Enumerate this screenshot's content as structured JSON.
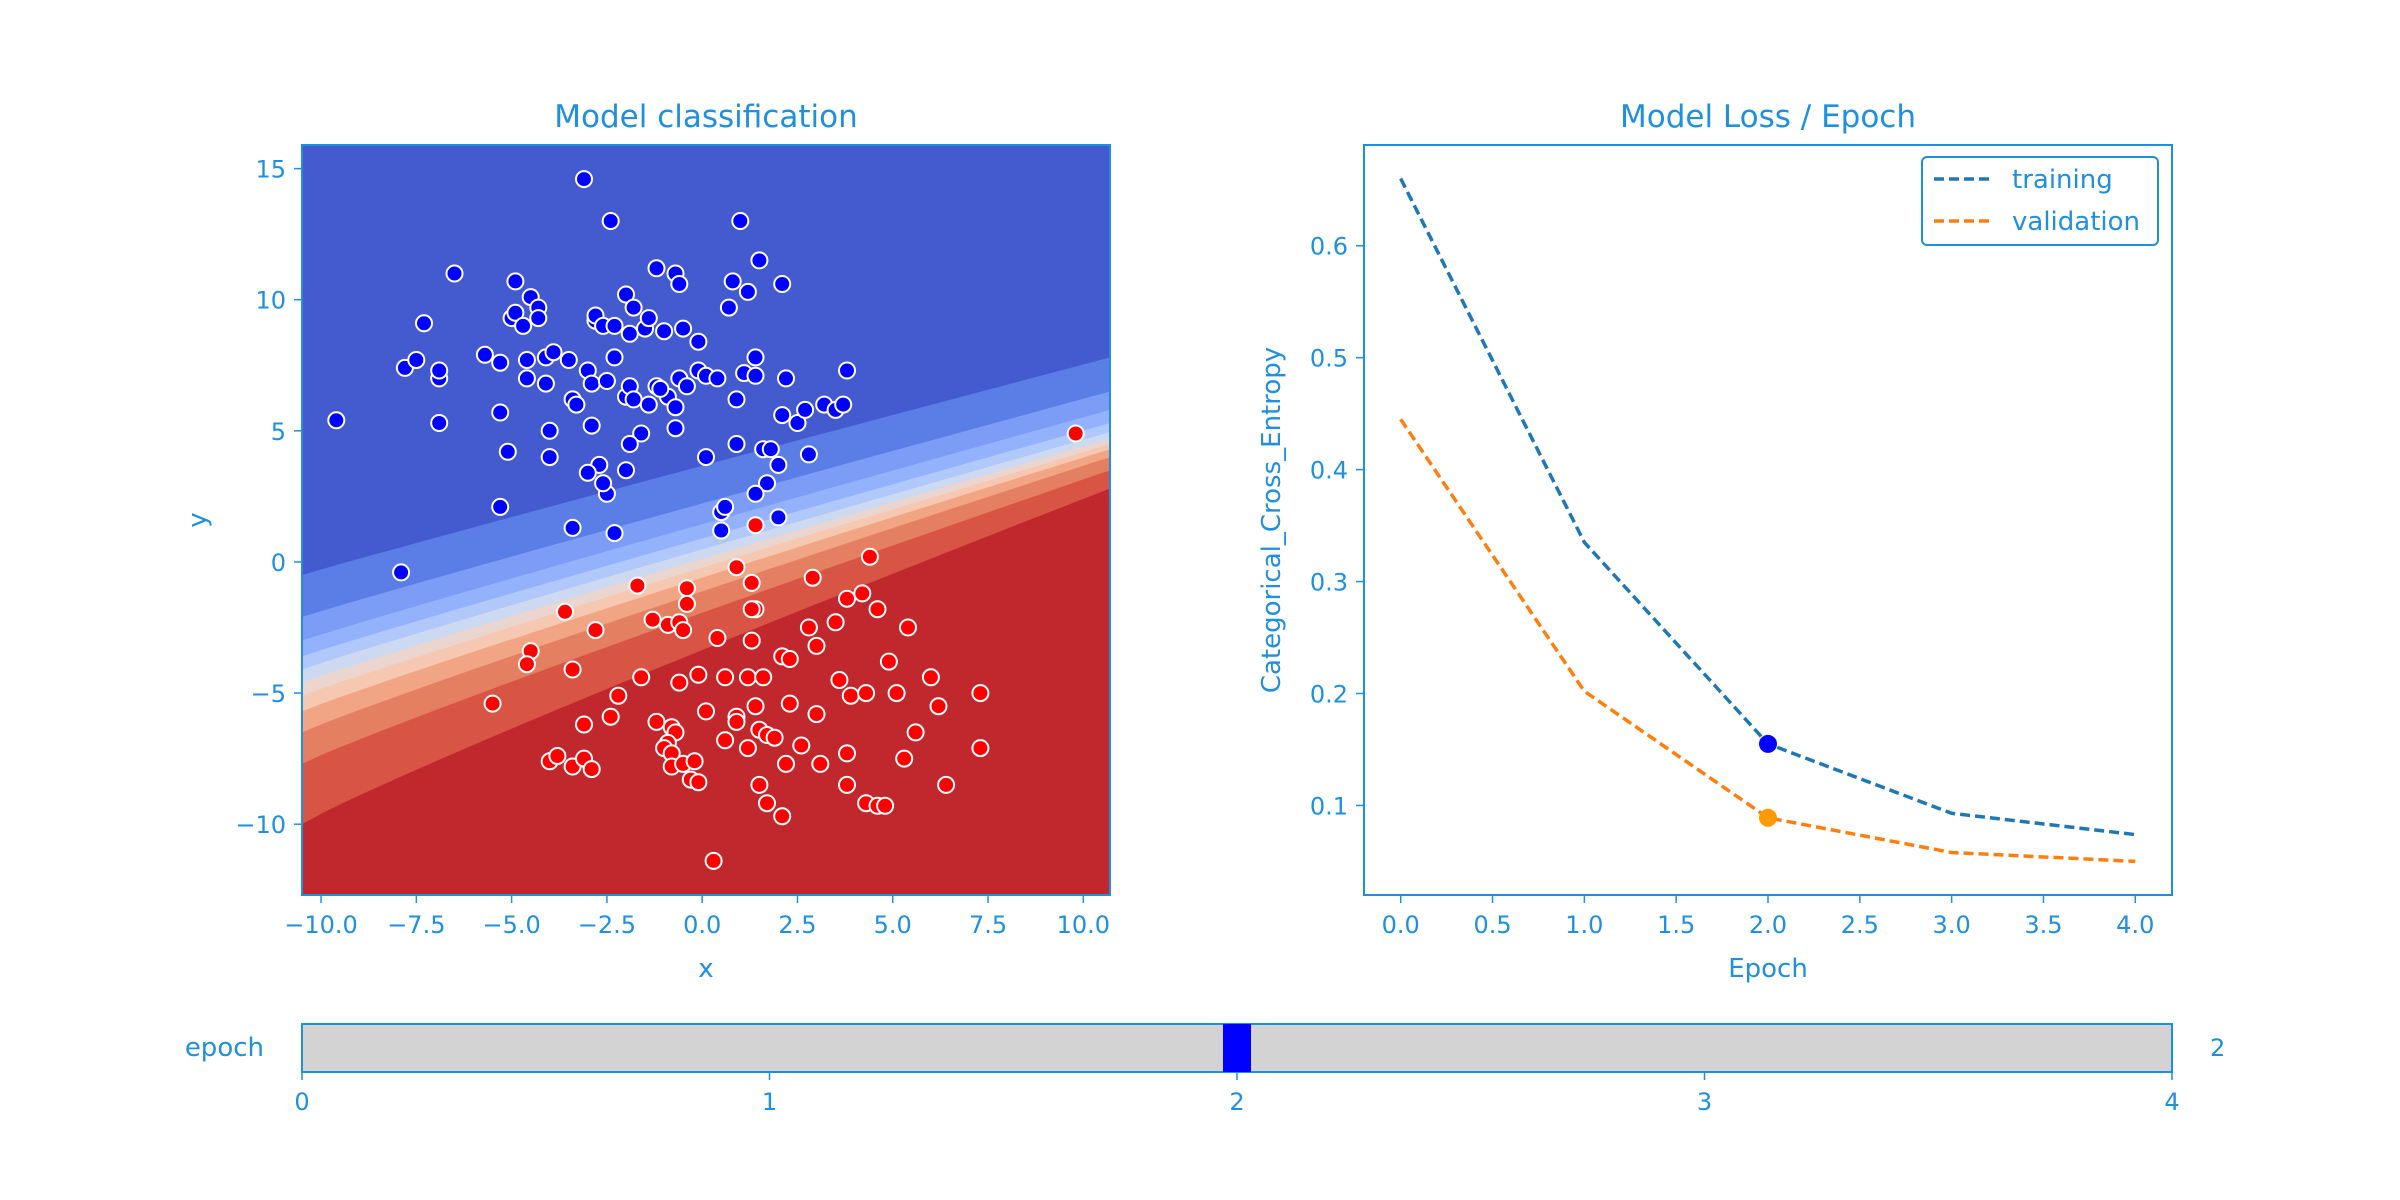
{
  "theme": {
    "text_color": "#1f8fe0",
    "frame_color": "#1f8fe0",
    "class_colors": {
      "blue": "#0000ff",
      "red": "#ff0000"
    },
    "contour_colors": [
      "#c0282d",
      "#d85545",
      "#e47f62",
      "#f2a585",
      "#f7c8b1",
      "#ead6cf",
      "#ccd9f0",
      "#b1c8fb",
      "#94b2fb",
      "#7d9cf6",
      "#5b7ee6",
      "#445bd0"
    ],
    "training_color": "#1f77b4",
    "validation_color": "#ff7f0e",
    "slider_track": "#d3d3d3",
    "slider_handle": "#0000ff"
  },
  "chart_data": [
    {
      "type": "scatter",
      "title": "Model classification",
      "xlabel": "x",
      "ylabel": "y",
      "xlim": [
        -10.5,
        10.7
      ],
      "ylim": [
        -12.7,
        15.9
      ],
      "xticks": [
        "−10.0",
        "−7.5",
        "−5.0",
        "−2.5",
        "0.0",
        "2.5",
        "5.0",
        "7.5",
        "10.0"
      ],
      "xtick_values": [
        -10,
        -7.5,
        -5,
        -2.5,
        0,
        2.5,
        5,
        7.5,
        10
      ],
      "yticks": [
        "−10",
        "−5",
        "0",
        "5",
        "10",
        "15"
      ],
      "ytick_values": [
        -10,
        -5,
        0,
        5,
        10,
        15
      ],
      "decision_boundary": {
        "background": "filled contour",
        "boundary_line": {
          "x": [
            -10.5,
            10.7
          ],
          "y": [
            -2.7,
            4.6
          ]
        }
      },
      "series": [
        {
          "class": "blue",
          "points": [
            [
              -9.6,
              5.4
            ],
            [
              -7.8,
              7.4
            ],
            [
              -7.3,
              9.1
            ],
            [
              -7.5,
              7.7
            ],
            [
              -6.9,
              7.0
            ],
            [
              -6.9,
              7.3
            ],
            [
              -6.9,
              5.3
            ],
            [
              -6.5,
              11.0
            ],
            [
              -5.7,
              7.9
            ],
            [
              -5.3,
              7.6
            ],
            [
              -5.3,
              5.7
            ],
            [
              -5.0,
              9.3
            ],
            [
              -4.9,
              9.5
            ],
            [
              -4.9,
              10.7
            ],
            [
              -4.7,
              9.0
            ],
            [
              -4.6,
              7.7
            ],
            [
              -4.6,
              7.0
            ],
            [
              -4.5,
              10.1
            ],
            [
              -4.3,
              9.7
            ],
            [
              -4.3,
              9.3
            ],
            [
              -4.1,
              7.8
            ],
            [
              -4.1,
              6.8
            ],
            [
              -4.0,
              5.0
            ],
            [
              -4.0,
              4.0
            ],
            [
              -3.9,
              8.0
            ],
            [
              -3.5,
              7.7
            ],
            [
              -3.4,
              6.2
            ],
            [
              -3.3,
              6.0
            ],
            [
              -3.1,
              14.6
            ],
            [
              -3.0,
              7.3
            ],
            [
              -2.9,
              5.2
            ],
            [
              -2.9,
              6.8
            ],
            [
              -2.8,
              9.2
            ],
            [
              -2.8,
              9.4
            ],
            [
              -2.7,
              3.7
            ],
            [
              -2.6,
              9.0
            ],
            [
              -2.5,
              6.9
            ],
            [
              -2.4,
              13.0
            ],
            [
              -2.3,
              9.0
            ],
            [
              -2.3,
              7.8
            ],
            [
              -2.0,
              10.2
            ],
            [
              -2.0,
              6.3
            ],
            [
              -1.9,
              6.7
            ],
            [
              -1.9,
              8.7
            ],
            [
              -1.8,
              9.7
            ],
            [
              -1.8,
              6.2
            ],
            [
              -1.6,
              4.9
            ],
            [
              -1.5,
              8.9
            ],
            [
              -1.4,
              9.3
            ],
            [
              -1.2,
              6.7
            ],
            [
              -1.2,
              11.2
            ],
            [
              -1.0,
              8.8
            ],
            [
              -0.9,
              6.3
            ],
            [
              -0.7,
              5.1
            ],
            [
              -0.7,
              5.9
            ],
            [
              -0.7,
              11.0
            ],
            [
              -0.6,
              10.6
            ],
            [
              -0.6,
              7.0
            ],
            [
              -0.5,
              8.9
            ],
            [
              -0.1,
              8.4
            ],
            [
              -0.1,
              7.3
            ],
            [
              0.1,
              7.1
            ],
            [
              0.1,
              4.0
            ],
            [
              0.4,
              7.0
            ],
            [
              0.5,
              1.9
            ],
            [
              0.5,
              1.2
            ],
            [
              0.6,
              2.1
            ],
            [
              0.7,
              9.7
            ],
            [
              0.8,
              10.7
            ],
            [
              0.9,
              6.2
            ],
            [
              0.9,
              4.5
            ],
            [
              1.0,
              13.0
            ],
            [
              1.1,
              7.2
            ],
            [
              1.2,
              10.3
            ],
            [
              1.4,
              7.1
            ],
            [
              1.4,
              7.8
            ],
            [
              1.5,
              11.5
            ],
            [
              1.6,
              4.3
            ],
            [
              1.7,
              3.0
            ],
            [
              1.8,
              4.3
            ],
            [
              2.0,
              1.7
            ],
            [
              2.0,
              3.7
            ],
            [
              2.1,
              5.6
            ],
            [
              2.1,
              10.6
            ],
            [
              2.2,
              7.0
            ],
            [
              2.5,
              5.3
            ],
            [
              2.7,
              5.8
            ],
            [
              2.8,
              4.1
            ],
            [
              3.2,
              6.0
            ],
            [
              3.5,
              5.8
            ],
            [
              3.7,
              6.0
            ],
            [
              3.8,
              7.3
            ],
            [
              -7.9,
              -0.4
            ],
            [
              -3.4,
              1.3
            ],
            [
              -5.3,
              2.1
            ],
            [
              -5.1,
              4.2
            ],
            [
              -2.5,
              2.6
            ],
            [
              -2.6,
              3.0
            ],
            [
              -3.0,
              3.4
            ],
            [
              -2.3,
              1.1
            ],
            [
              -1.4,
              6.0
            ],
            [
              -1.1,
              6.6
            ],
            [
              -0.4,
              6.7
            ],
            [
              -2.0,
              3.5
            ],
            [
              1.4,
              2.6
            ],
            [
              -1.9,
              4.5
            ]
          ]
        },
        {
          "class": "red",
          "points": [
            [
              9.8,
              4.9
            ],
            [
              1.4,
              1.4
            ],
            [
              4.4,
              0.2
            ],
            [
              -3.6,
              -1.9
            ],
            [
              -1.7,
              -0.9
            ],
            [
              -0.4,
              -1.0
            ],
            [
              -0.4,
              -1.6
            ],
            [
              0.9,
              -0.2
            ],
            [
              1.3,
              -0.8
            ],
            [
              2.9,
              -0.6
            ],
            [
              3.8,
              -1.4
            ],
            [
              4.2,
              -1.2
            ],
            [
              4.6,
              -1.8
            ],
            [
              -1.3,
              -2.2
            ],
            [
              -0.9,
              -2.4
            ],
            [
              -0.6,
              -2.3
            ],
            [
              -0.5,
              -2.6
            ],
            [
              0.4,
              -2.9
            ],
            [
              1.3,
              -3.0
            ],
            [
              1.4,
              -1.8
            ],
            [
              1.3,
              -1.8
            ],
            [
              2.8,
              -2.5
            ],
            [
              3.5,
              -2.3
            ],
            [
              5.4,
              -2.5
            ],
            [
              -4.5,
              -3.4
            ],
            [
              -4.6,
              -3.9
            ],
            [
              -3.4,
              -4.1
            ],
            [
              -2.8,
              -2.6
            ],
            [
              -1.6,
              -4.4
            ],
            [
              -0.6,
              -4.6
            ],
            [
              -0.1,
              -4.3
            ],
            [
              0.6,
              -4.4
            ],
            [
              1.2,
              -4.4
            ],
            [
              1.6,
              -4.4
            ],
            [
              2.1,
              -3.6
            ],
            [
              2.3,
              -3.7
            ],
            [
              3.0,
              -3.2
            ],
            [
              3.6,
              -4.5
            ],
            [
              3.9,
              -5.1
            ],
            [
              4.3,
              -5.0
            ],
            [
              4.9,
              -3.8
            ],
            [
              5.1,
              -5.0
            ],
            [
              6.0,
              -4.4
            ],
            [
              -5.5,
              -5.4
            ],
            [
              -3.1,
              -6.2
            ],
            [
              -2.4,
              -5.9
            ],
            [
              -2.2,
              -5.1
            ],
            [
              -1.2,
              -6.1
            ],
            [
              -0.8,
              -6.3
            ],
            [
              -0.7,
              -6.5
            ],
            [
              -0.9,
              -6.9
            ],
            [
              0.1,
              -5.7
            ],
            [
              0.6,
              -6.8
            ],
            [
              0.9,
              -5.9
            ],
            [
              0.9,
              -6.1
            ],
            [
              1.2,
              -7.1
            ],
            [
              1.4,
              -5.5
            ],
            [
              1.5,
              -6.4
            ],
            [
              1.7,
              -6.6
            ],
            [
              1.9,
              -6.7
            ],
            [
              2.3,
              -5.4
            ],
            [
              2.6,
              -7.0
            ],
            [
              3.0,
              -5.8
            ],
            [
              3.8,
              -7.3
            ],
            [
              3.1,
              -7.7
            ],
            [
              -4.0,
              -7.6
            ],
            [
              -3.8,
              -7.4
            ],
            [
              -3.4,
              -7.8
            ],
            [
              -3.1,
              -7.5
            ],
            [
              -2.9,
              -7.9
            ],
            [
              -1.0,
              -7.1
            ],
            [
              -0.8,
              -7.3
            ],
            [
              -0.8,
              -7.8
            ],
            [
              -0.5,
              -7.7
            ],
            [
              -0.2,
              -7.6
            ],
            [
              -0.3,
              -8.3
            ],
            [
              -0.1,
              -8.4
            ],
            [
              2.2,
              -7.7
            ],
            [
              1.5,
              -8.5
            ],
            [
              1.7,
              -9.2
            ],
            [
              2.1,
              -9.7
            ],
            [
              3.8,
              -8.5
            ],
            [
              4.3,
              -9.2
            ],
            [
              4.6,
              -9.3
            ],
            [
              4.8,
              -9.3
            ],
            [
              5.3,
              -7.5
            ],
            [
              5.6,
              -6.5
            ],
            [
              6.2,
              -5.5
            ],
            [
              6.4,
              -8.5
            ],
            [
              7.3,
              -5.0
            ],
            [
              7.3,
              -7.1
            ],
            [
              0.3,
              -11.4
            ]
          ]
        }
      ]
    },
    {
      "type": "line",
      "title": "Model Loss / Epoch",
      "xlabel": "Epoch",
      "ylabel": "Categorical_Cross_Entropy",
      "xlim": [
        -0.2,
        4.2
      ],
      "ylim": [
        0.02,
        0.69
      ],
      "xticks": [
        "0.0",
        "0.5",
        "1.0",
        "1.5",
        "2.0",
        "2.5",
        "3.0",
        "3.5",
        "4.0"
      ],
      "xtick_values": [
        0,
        0.5,
        1,
        1.5,
        2,
        2.5,
        3,
        3.5,
        4
      ],
      "yticks": [
        "0.1",
        "0.2",
        "0.3",
        "0.4",
        "0.5",
        "0.6"
      ],
      "ytick_values": [
        0.1,
        0.2,
        0.3,
        0.4,
        0.5,
        0.6
      ],
      "x": [
        0,
        1,
        2,
        3,
        4
      ],
      "series": [
        {
          "name": "training",
          "style": "dashed",
          "values": [
            0.66,
            0.335,
            0.155,
            0.093,
            0.074
          ]
        },
        {
          "name": "validation",
          "style": "dashed",
          "values": [
            0.445,
            0.202,
            0.089,
            0.058,
            0.05
          ]
        }
      ],
      "markers": [
        {
          "series": "training",
          "x": 2,
          "y": 0.155,
          "color": "#0000ff"
        },
        {
          "series": "validation",
          "x": 2,
          "y": 0.089,
          "color": "#ff9a00"
        }
      ],
      "legend": "top-right"
    }
  ],
  "slider": {
    "label": "epoch",
    "min": 0,
    "max": 4,
    "value": 2,
    "value_text": "2",
    "ticks": [
      "0",
      "1",
      "2",
      "3",
      "4"
    ],
    "tick_values": [
      0,
      1,
      2,
      3,
      4
    ]
  }
}
